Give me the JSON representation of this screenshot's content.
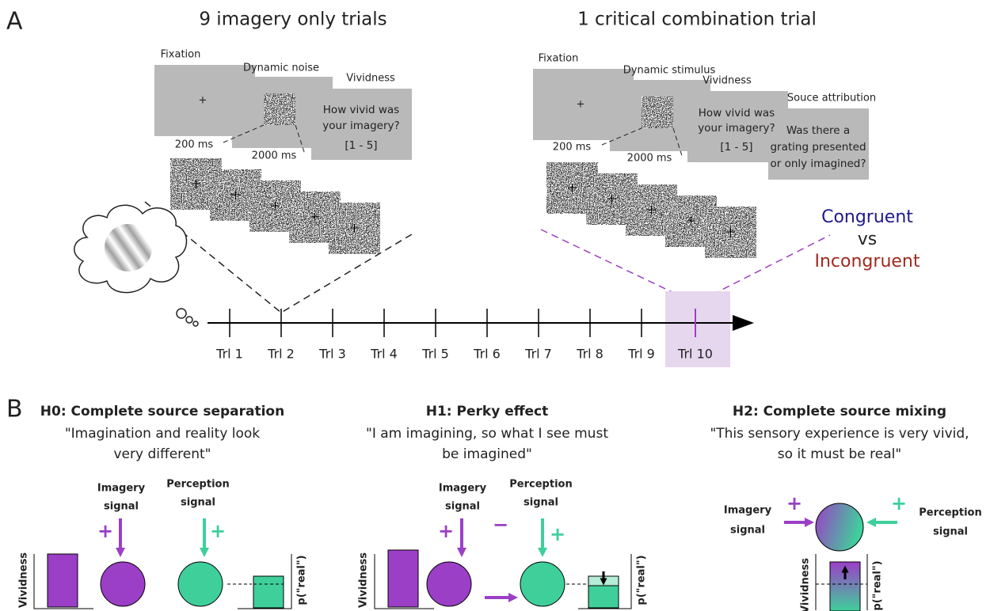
{
  "panel_a": {
    "label": "A",
    "left_title": "9 imagery only trials",
    "right_title": "1 critical combination trial",
    "left": {
      "screens": [
        "Fixation",
        "Dynamic noise",
        "Vividness"
      ],
      "times": [
        "200 ms",
        "2000 ms"
      ],
      "question": [
        "How vivid was",
        "your imagery?"
      ],
      "scale": "[1 - 5]"
    },
    "right": {
      "screens": [
        "Fixation",
        "Dynamic stimulus",
        "Vividness",
        "Souce attribution"
      ],
      "times": [
        "200 ms",
        "2000 ms"
      ],
      "question": [
        "How vivid was",
        "your imagery?"
      ],
      "scale": "[1 - 5]",
      "attribution": [
        "Was there a",
        "grating presented",
        "or only imagined?"
      ]
    },
    "conditions": [
      "Congruent",
      "vs",
      "Incongruent"
    ],
    "trials": [
      "Trl 1",
      "Trl 2",
      "Trl 3",
      "Trl 4",
      "Trl 5",
      "Trl 6",
      "Trl 7",
      "Trl 8",
      "Trl 9",
      "Trl 10"
    ]
  },
  "panel_b": {
    "label": "B",
    "hypotheses": [
      {
        "title": "H0: Complete source separation",
        "quote": [
          "\"Imagination and reality look",
          "very different\""
        ]
      },
      {
        "title": "H1:  Perky effect",
        "quote": [
          "\"I am imagining, so what I see must",
          "be imagined\""
        ]
      },
      {
        "title": "H2: Complete source mixing",
        "quote": [
          "\"This sensory experience is very vivid,",
          "so it must be real\""
        ]
      }
    ],
    "imagery_signal": [
      "Imagery",
      "signal"
    ],
    "perception_signal": [
      "Perception",
      "signal"
    ],
    "y_label": "Vividness",
    "right_label": "p(\"real\")",
    "plus": "+",
    "minus": "−"
  }
}
